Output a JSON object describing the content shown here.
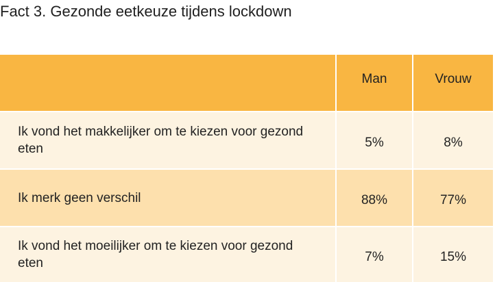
{
  "title": "Fact 3. Gezonde eetkeuze tijdens lockdown",
  "table": {
    "headers": {
      "label": "",
      "man": "Man",
      "vrouw": "Vrouw"
    },
    "rows": [
      {
        "label": "Ik vond het makkelijker om te kiezen voor gezond eten",
        "man": "5%",
        "vrouw": "8%"
      },
      {
        "label": "Ik merk geen verschil",
        "man": "88%",
        "vrouw": "77%"
      },
      {
        "label": "Ik vond het moeilijker om te kiezen voor gezond eten",
        "man": "7%",
        "vrouw": "15%"
      }
    ]
  },
  "colors": {
    "header": "#f9b642",
    "row_light": "#fdf3e1",
    "row_mid": "#fde0ad",
    "text": "#1f1f1f"
  }
}
